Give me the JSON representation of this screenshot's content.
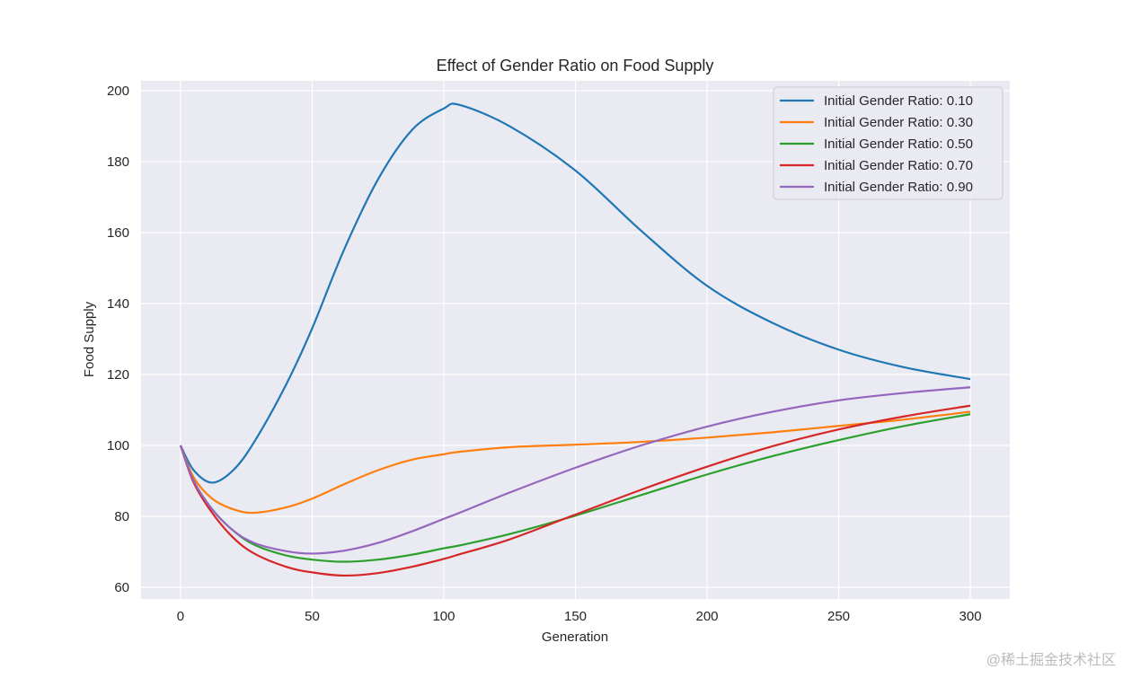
{
  "chart_data": {
    "type": "line",
    "title": "Effect of Gender Ratio on Food Supply",
    "xlabel": "Generation",
    "ylabel": "Food Supply",
    "xlim": [
      -15,
      315
    ],
    "ylim": [
      56.7,
      202.8
    ],
    "xticks": [
      0,
      50,
      100,
      150,
      200,
      250,
      300
    ],
    "yticks": [
      60,
      80,
      100,
      120,
      140,
      160,
      180,
      200
    ],
    "grid": true,
    "background": "#eaeaf2",
    "legend_position": "top-right",
    "x": [
      0,
      5,
      12,
      20,
      28,
      40,
      50,
      62,
      75,
      88,
      100,
      106,
      125,
      150,
      175,
      200,
      225,
      250,
      275,
      300
    ],
    "series": [
      {
        "name": "Initial Gender Ratio: 0.10",
        "color": "#1f77b4",
        "values": [
          100,
          93,
          89.5,
          93,
          101,
          117,
          133,
          155,
          175,
          189,
          195,
          196,
          190,
          177.5,
          160.5,
          145,
          134.5,
          127,
          122,
          118.7
        ]
      },
      {
        "name": "Initial Gender Ratio: 0.30",
        "color": "#ff7f0e",
        "values": [
          100,
          91,
          85,
          82,
          81,
          82.5,
          85,
          89,
          93,
          96,
          97.5,
          98.2,
          99.5,
          100.2,
          101,
          102.2,
          103.7,
          105.5,
          107.3,
          109.5
        ]
      },
      {
        "name": "Initial Gender Ratio: 0.50",
        "color": "#2ca02c",
        "values": [
          100,
          90,
          82,
          76,
          72,
          69,
          67.8,
          67.2,
          67.8,
          69.2,
          71,
          71.8,
          75,
          80.2,
          86,
          91.8,
          97,
          101.5,
          105.5,
          108.8
        ]
      },
      {
        "name": "Initial Gender Ratio: 0.70",
        "color": "#d62728",
        "values": [
          100,
          89.5,
          81,
          74,
          69.5,
          65.8,
          64.2,
          63.3,
          64,
          65.8,
          68,
          69.3,
          73.5,
          80.5,
          87.5,
          94,
          99.8,
          104.5,
          108.2,
          111.2
        ]
      },
      {
        "name": "Initial Gender Ratio: 0.90",
        "color": "#9467bd",
        "values": [
          100,
          90,
          82,
          76,
          72.5,
          70.2,
          69.5,
          70.3,
          72.5,
          75.8,
          79.3,
          81,
          86.7,
          93.7,
          100,
          105.3,
          109.5,
          112.7,
          114.8,
          116.4
        ]
      }
    ]
  },
  "watermark": "@稀土掘金技术社区"
}
